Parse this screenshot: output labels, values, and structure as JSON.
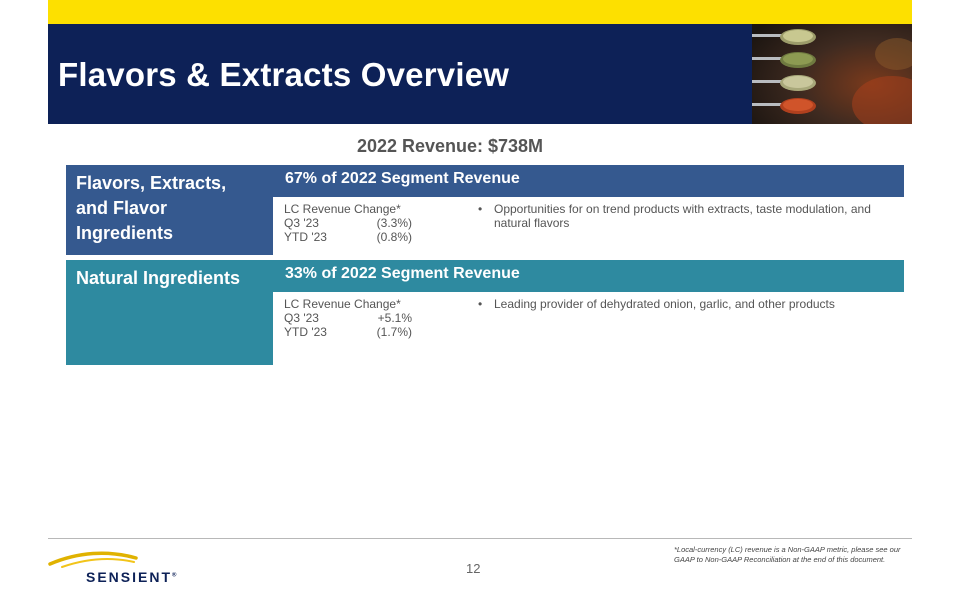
{
  "header": {
    "title": "Flavors & Extracts Overview"
  },
  "revenue_heading": "2022 Revenue: $738M",
  "segments": [
    {
      "name": "Flavors, Extracts, and Flavor Ingredients",
      "share": "67% of 2022 Segment Revenue",
      "metrics_header": "LC Revenue  Change*",
      "metrics": [
        {
          "label": "Q3 '23",
          "value": "(3.3%)"
        },
        {
          "label": "YTD '23",
          "value": "(0.8%)"
        }
      ],
      "bullet": "Opportunities for on trend products with extracts, taste modulation, and natural flavors",
      "color": "#35598f"
    },
    {
      "name": "Natural Ingredients",
      "share": "33% of 2022 Segment Revenue",
      "metrics_header": "LC Revenue  Change*",
      "metrics": [
        {
          "label": "Q3 '23",
          "value": "+5.1%"
        },
        {
          "label": "YTD '23",
          "value": "(1.7%)"
        }
      ],
      "bullet": "Leading provider  of dehydrated onion, garlic, and other products",
      "color": "#2e8aa0"
    }
  ],
  "footer": {
    "logo_text": "SENSIENT",
    "logo_mark": "®",
    "page_number": "12",
    "footnote": "*Local-currency (LC) revenue is a Non-GAAP metric, please see our GAAP to Non-GAAP Reconciliation at the end of this document."
  },
  "colors": {
    "navy": "#0d2157",
    "yellow": "#fde000",
    "blue": "#35598f",
    "teal": "#2e8aa0"
  }
}
